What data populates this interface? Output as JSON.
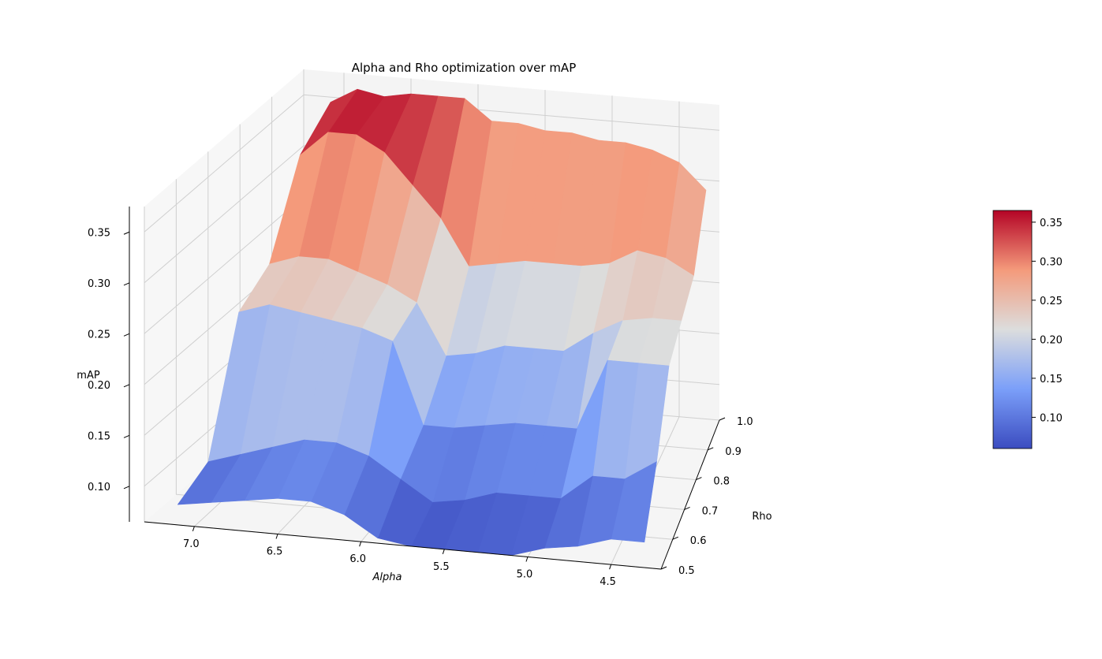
{
  "chart_data": {
    "type": "surface3d",
    "title": "Alpha and Rho optimization over mAP",
    "xlabel": "Alpha",
    "ylabel": "Rho",
    "zlabel": "mAP",
    "colormap": "coolwarm",
    "grid": true,
    "alpha_ticks": [
      "7.0",
      "6.5",
      "6.0",
      "5.5",
      "5.0",
      "4.5"
    ],
    "rho_ticks": [
      "0.5",
      "0.6",
      "0.7",
      "0.8",
      "0.9",
      "1.0"
    ],
    "map_ticks": [
      "0.10",
      "0.15",
      "0.20",
      "0.25",
      "0.30",
      "0.35"
    ],
    "colorbar_ticks": [
      "0.10",
      "0.15",
      "0.20",
      "0.25",
      "0.30",
      "0.35"
    ],
    "colorbar_range": [
      0.06,
      0.365
    ],
    "alpha_range": [
      4.2,
      7.3
    ],
    "rho_range": [
      0.5,
      1.0
    ],
    "map_range": [
      0.065,
      0.375
    ],
    "alpha": [
      4.3,
      4.5,
      4.7,
      4.9,
      5.1,
      5.3,
      5.5,
      5.7,
      5.9,
      6.1,
      6.3,
      6.5,
      6.7,
      6.9,
      7.1
    ],
    "rho": [
      0.5,
      0.6,
      0.7,
      0.8,
      0.9,
      1.0
    ],
    "map": [
      [
        0.09,
        0.09,
        0.08,
        0.075,
        0.065,
        0.065,
        0.065,
        0.065,
        0.07,
        0.09,
        0.1,
        0.1,
        0.095,
        0.09,
        0.085
      ],
      [
        0.14,
        0.12,
        0.12,
        0.095,
        0.095,
        0.095,
        0.085,
        0.08,
        0.1,
        0.12,
        0.13,
        0.13,
        0.12,
        0.11,
        0.1
      ],
      [
        0.205,
        0.205,
        0.205,
        0.135,
        0.135,
        0.135,
        0.13,
        0.125,
        0.125,
        0.205,
        0.215,
        0.22,
        0.225,
        0.23,
        0.22
      ],
      [
        0.22,
        0.22,
        0.215,
        0.2,
        0.18,
        0.18,
        0.18,
        0.17,
        0.165,
        0.215,
        0.23,
        0.24,
        0.25,
        0.25,
        0.24
      ],
      [
        0.235,
        0.25,
        0.255,
        0.24,
        0.235,
        0.235,
        0.235,
        0.23,
        0.225,
        0.27,
        0.3,
        0.33,
        0.345,
        0.345,
        0.32
      ],
      [
        0.29,
        0.315,
        0.325,
        0.33,
        0.33,
        0.335,
        0.335,
        0.34,
        0.34,
        0.36,
        0.36,
        0.36,
        0.355,
        0.36,
        0.345
      ]
    ]
  }
}
